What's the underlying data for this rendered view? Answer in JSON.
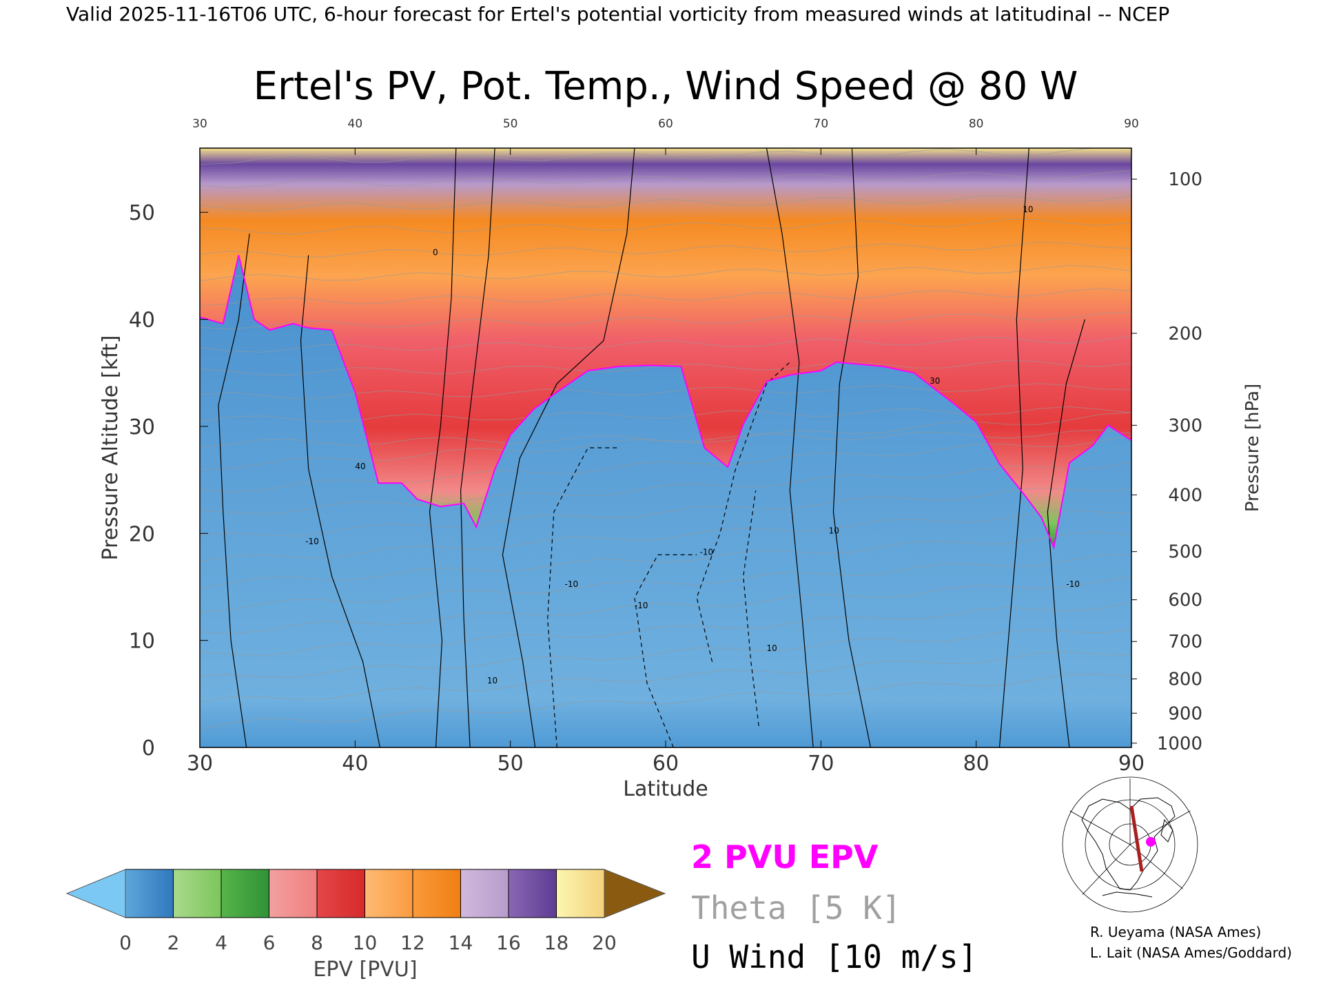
{
  "header": {
    "valid_line": "Valid 2025-11-16T06 UTC, 6-hour forecast for Ertel's potential vorticity from measured winds at latitudinal -- NCEP",
    "title": "Ertel's PV, Pot. Temp., Wind Speed @ 80 W"
  },
  "chart_data": {
    "type": "heatmap",
    "title": "Ertel's PV, Pot. Temp., Wind Speed @ 80 W",
    "xlabel": "Latitude",
    "ylabel": "Pressure Altitude [kft]",
    "y2label": "Pressure [hPa]",
    "xlim": [
      30,
      90
    ],
    "ylim": [
      0,
      56
    ],
    "x_ticks": [
      30,
      40,
      50,
      60,
      70,
      80,
      90
    ],
    "y_ticks": [
      0,
      10,
      20,
      30,
      40,
      50
    ],
    "pressure_ticks": [
      {
        "label": "100",
        "kft": 53.1
      },
      {
        "label": "200",
        "kft": 38.7
      },
      {
        "label": "300",
        "kft": 30.1
      },
      {
        "label": "400",
        "kft": 23.6
      },
      {
        "label": "500",
        "kft": 18.3
      },
      {
        "label": "600",
        "kft": 13.8
      },
      {
        "label": "700",
        "kft": 9.9
      },
      {
        "label": "800",
        "kft": 6.4
      },
      {
        "label": "900",
        "kft": 3.2
      },
      {
        "label": "1000",
        "kft": 0.4
      }
    ],
    "colorbar": {
      "label": "EPV [PVU]",
      "ticks": [
        "0",
        "2",
        "4",
        "6",
        "8",
        "10",
        "12",
        "14",
        "16",
        "18",
        "20"
      ],
      "under_color": "#7cc8f4",
      "over_color": "#8a5a10",
      "segments": [
        [
          "#5ea7dc",
          "#2f78bd"
        ],
        [
          "#a9d98c",
          "#7cc65c"
        ],
        [
          "#58b44a",
          "#2f9236"
        ],
        [
          "#f3a0a0",
          "#f07f7f"
        ],
        [
          "#e44648",
          "#d62a2a"
        ],
        [
          "#fdbb73",
          "#fc9b40"
        ],
        [
          "#fa9a3c",
          "#f07e12"
        ],
        [
          "#d2b9dc",
          "#b69ccb"
        ],
        [
          "#8a67b4",
          "#5d3c93"
        ],
        [
          "#fcf6b0",
          "#f3d27e"
        ]
      ]
    },
    "tropopause_kft": [
      [
        30,
        40.2
      ],
      [
        31.5,
        39.6
      ],
      [
        32.5,
        46.0
      ],
      [
        33.5,
        40.0
      ],
      [
        34.5,
        39.0
      ],
      [
        36,
        39.6
      ],
      [
        37,
        39.2
      ],
      [
        38.5,
        39.0
      ],
      [
        40,
        33.2
      ],
      [
        41.5,
        24.7
      ],
      [
        43,
        24.7
      ],
      [
        44,
        23.2
      ],
      [
        45.5,
        22.5
      ],
      [
        47,
        22.8
      ],
      [
        47.8,
        20.6
      ],
      [
        49,
        26.0
      ],
      [
        50,
        29.2
      ],
      [
        51.5,
        31.6
      ],
      [
        53,
        33.2
      ],
      [
        55,
        35.2
      ],
      [
        57,
        35.6
      ],
      [
        59,
        35.7
      ],
      [
        61,
        35.6
      ],
      [
        62.5,
        28.0
      ],
      [
        64,
        26.2
      ],
      [
        65,
        30.2
      ],
      [
        66.5,
        34.2
      ],
      [
        68,
        34.8
      ],
      [
        70,
        35.2
      ],
      [
        71,
        36.0
      ],
      [
        72.5,
        35.8
      ],
      [
        74,
        35.6
      ],
      [
        76,
        35.0
      ],
      [
        78.5,
        32.2
      ],
      [
        80,
        30.4
      ],
      [
        81.5,
        26.5
      ],
      [
        83,
        23.8
      ],
      [
        84.2,
        21.5
      ],
      [
        85,
        18.7
      ],
      [
        86,
        26.6
      ],
      [
        87.5,
        28.2
      ],
      [
        88.5,
        30.1
      ],
      [
        90,
        28.7
      ]
    ],
    "wind_contours": [
      "-10",
      "0",
      "10",
      "30",
      "40"
    ],
    "theta_contours": [
      "300",
      "330",
      "350",
      "360",
      "370",
      "380",
      "400",
      "420"
    ],
    "legend": {
      "pv_line": "2 PVU EPV",
      "theta": "Theta [5 K]",
      "uwind": "U Wind [10 m/s]",
      "pv_color": "#ff00ff",
      "theta_color": "#a0a0a0",
      "uwind_color": "#000000"
    }
  },
  "credits": {
    "line1": "R. Ueyama (NASA Ames)",
    "line2": "L. Lait (NASA Ames/Goddard)"
  },
  "inset_map": {
    "description": "polar-stereographic",
    "track_color": "#a82020",
    "marker_color": "#ff00ff"
  }
}
